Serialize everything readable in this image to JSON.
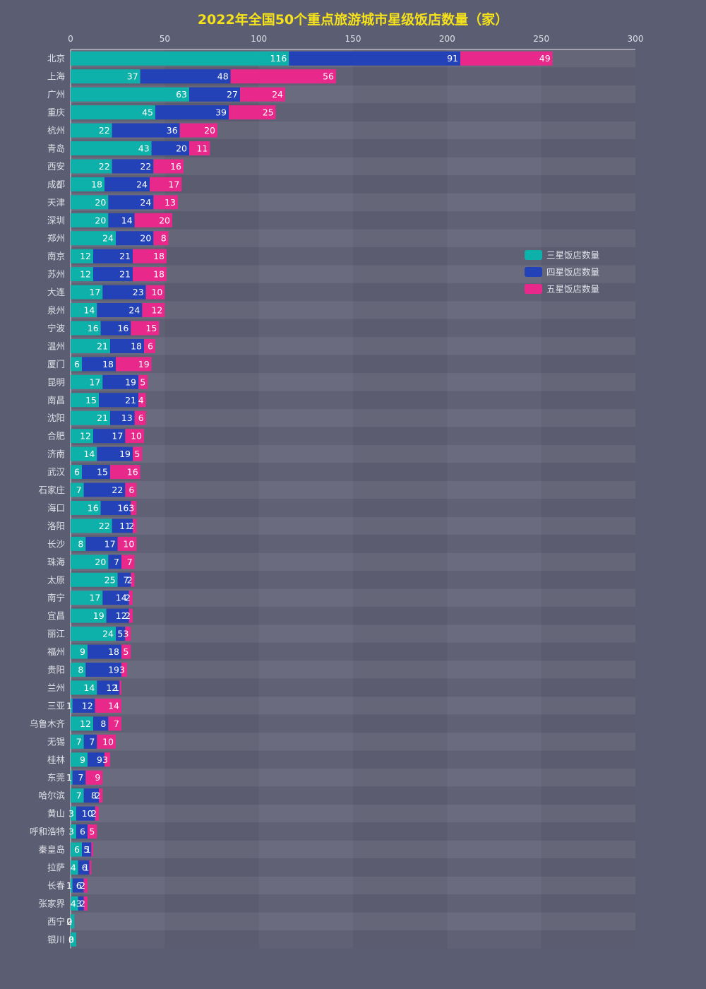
{
  "colors": {
    "background": "#5b5d72",
    "title": "#f5e21a",
    "axis_text": "#e0e0e8",
    "band_light": "#6a6b7e",
    "band_dark": "#606174",
    "series": [
      "#0eb1a9",
      "#2342b8",
      "#e8298b"
    ]
  },
  "chart_data": {
    "type": "bar",
    "orientation": "horizontal",
    "stacked": true,
    "title": "2022年全国50个重点旅游城市星级饭店数量（家）",
    "xlim": [
      0,
      300
    ],
    "xticks": [
      0,
      50,
      100,
      150,
      200,
      250,
      300
    ],
    "legend_position": "right",
    "categories": [
      "北京",
      "上海",
      "广州",
      "重庆",
      "杭州",
      "青岛",
      "西安",
      "成都",
      "天津",
      "深圳",
      "郑州",
      "南京",
      "苏州",
      "大连",
      "泉州",
      "宁波",
      "温州",
      "厦门",
      "昆明",
      "南昌",
      "沈阳",
      "合肥",
      "济南",
      "武汉",
      "石家庄",
      "海口",
      "洛阳",
      "长沙",
      "珠海",
      "太原",
      "南宁",
      "宜昌",
      "丽江",
      "福州",
      "贵阳",
      "兰州",
      "三亚",
      "乌鲁木齐",
      "无锡",
      "桂林",
      "东莞",
      "哈尔滨",
      "黄山",
      "呼和浩特",
      "秦皇岛",
      "拉萨",
      "长春",
      "张家界",
      "西宁",
      "银川"
    ],
    "series": [
      {
        "name": "三星饭店数量",
        "values": [
          116,
          37,
          63,
          45,
          22,
          43,
          22,
          18,
          20,
          20,
          24,
          12,
          12,
          17,
          14,
          16,
          21,
          6,
          17,
          15,
          21,
          12,
          14,
          6,
          7,
          16,
          22,
          8,
          20,
          25,
          17,
          19,
          24,
          9,
          8,
          14,
          1,
          12,
          7,
          9,
          1,
          7,
          3,
          3,
          6,
          4,
          1,
          4,
          2,
          3
        ]
      },
      {
        "name": "四星饭店数量",
        "values": [
          91,
          48,
          27,
          39,
          36,
          20,
          22,
          24,
          24,
          14,
          20,
          21,
          21,
          23,
          24,
          16,
          18,
          18,
          19,
          21,
          13,
          17,
          19,
          15,
          22,
          16,
          11,
          17,
          7,
          7,
          14,
          12,
          5,
          18,
          19,
          12,
          12,
          8,
          7,
          9,
          7,
          8,
          10,
          6,
          5,
          6,
          6,
          3,
          0,
          0
        ]
      },
      {
        "name": "五星饭店数量",
        "values": [
          49,
          56,
          24,
          25,
          20,
          11,
          16,
          17,
          13,
          20,
          8,
          18,
          18,
          10,
          12,
          15,
          6,
          19,
          5,
          4,
          6,
          10,
          5,
          16,
          6,
          3,
          2,
          10,
          7,
          2,
          2,
          2,
          3,
          5,
          3,
          1,
          14,
          7,
          10,
          3,
          9,
          2,
          2,
          5,
          1,
          1,
          2,
          2,
          0,
          0
        ]
      }
    ]
  }
}
